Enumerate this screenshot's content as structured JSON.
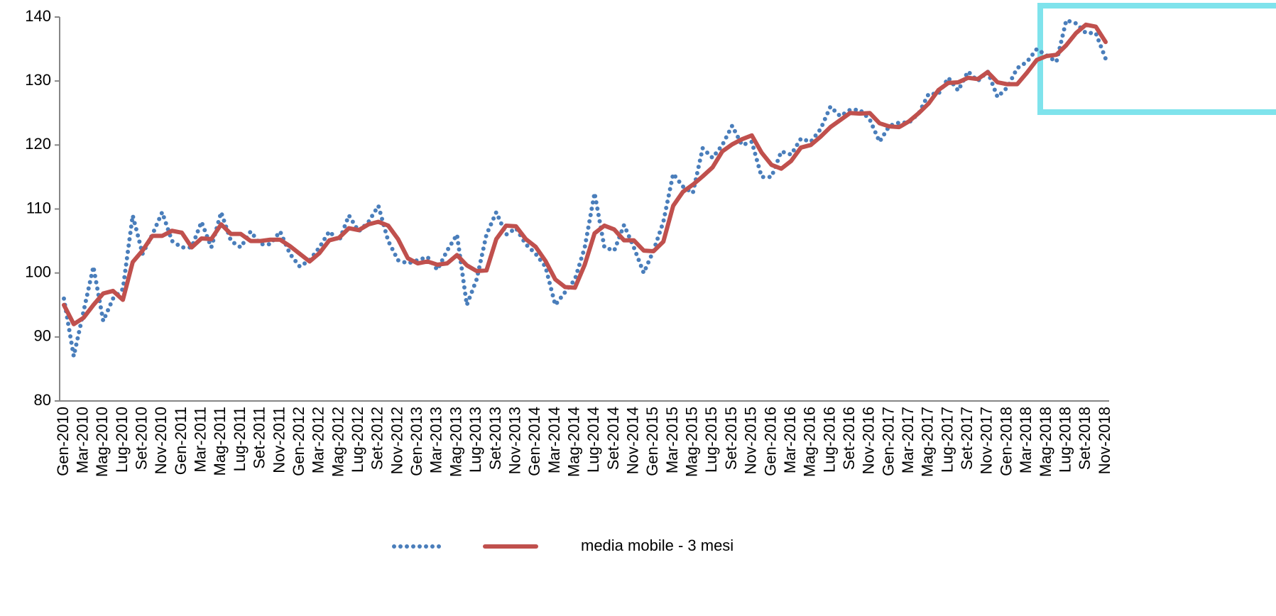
{
  "chart_data": {
    "type": "line",
    "categories": [
      "Gen-2010",
      null,
      "Mar-2010",
      null,
      "Mag-2010",
      null,
      "Lug-2010",
      null,
      "Set-2010",
      null,
      "Nov-2010",
      null,
      "Gen-2011",
      null,
      "Mar-2011",
      null,
      "Mag-2011",
      null,
      "Lug-2011",
      null,
      "Set-2011",
      null,
      "Nov-2011",
      null,
      "Gen-2012",
      null,
      "Mar-2012",
      null,
      "Mag-2012",
      null,
      "Lug-2012",
      null,
      "Set-2012",
      null,
      "Nov-2012",
      null,
      "Gen-2013",
      null,
      "Mar-2013",
      null,
      "Mag-2013",
      null,
      "Lug-2013",
      null,
      "Set-2013",
      null,
      "Nov-2013",
      null,
      "Gen-2014",
      null,
      "Mar-2014",
      null,
      "Mag-2014",
      null,
      "Lug-2014",
      null,
      "Set-2014",
      null,
      "Nov-2014",
      null,
      "Gen-2015",
      null,
      "Mar-2015",
      null,
      "Mag-2015",
      null,
      "Lug-2015",
      null,
      "Set-2015",
      null,
      "Nov-2015",
      null,
      "Gen-2016",
      null,
      "Mar-2016",
      null,
      "Mag-2016",
      null,
      "Lug-2016",
      null,
      "Set-2016",
      null,
      "Nov-2016",
      null,
      "Gen-2017",
      null,
      "Mar-2017",
      null,
      "Mag-2017",
      null,
      "Lug-2017",
      null,
      "Set-2017",
      null,
      "Nov-2017",
      null,
      "Gen-2018",
      null,
      "Mar-2018",
      null,
      "Mag-2018",
      null,
      "Lug-2018",
      null,
      "Set-2018",
      null,
      "Nov-2018"
    ],
    "series": [
      {
        "color": "#4a7ebb",
        "style": "dotted",
        "values": [
          96,
          87,
          94,
          101,
          92.5,
          96,
          97.5,
          109,
          103,
          106,
          109.5,
          105,
          104,
          104,
          108,
          104,
          109.5,
          105,
          104,
          106.5,
          104.5,
          104.5,
          106.5,
          103,
          101,
          102,
          104,
          106.5,
          105,
          109,
          106.5,
          108,
          110.5,
          105,
          102,
          101.5,
          102,
          102.5,
          100.5,
          103.5,
          106,
          95,
          99,
          106,
          109.5,
          106,
          107,
          104.5,
          103,
          101,
          95,
          97,
          99,
          104,
          112.5,
          104,
          103.5,
          107.5,
          104,
          100,
          103.5,
          108,
          115.5,
          113.5,
          112.5,
          119.5,
          118,
          120,
          123,
          120,
          120.5,
          115,
          115,
          119,
          118.5,
          121,
          120.5,
          122.5,
          126,
          124.5,
          125.5,
          125.5,
          124,
          120.5,
          123,
          123.5,
          123.5,
          125,
          128,
          128,
          130.5,
          128.5,
          131.5,
          130,
          131.5,
          127.5,
          129,
          132,
          133,
          135,
          134,
          133,
          139.5,
          139,
          137.5,
          137.5,
          133.5
        ]
      },
      {
        "name": "media mobile - 3 mesi",
        "color": "#c0504d",
        "style": "solid",
        "values": [
          95,
          92,
          93,
          95,
          96.8,
          97.2,
          95.8,
          101.7,
          103.5,
          105.8,
          105.8,
          106.6,
          106.3,
          104,
          105.4,
          105.3,
          107.6,
          106.1,
          106.1,
          105,
          105,
          105.2,
          105.2,
          104.2,
          103,
          101.8,
          103.1,
          105.1,
          105.5,
          107,
          106.7,
          107.6,
          108,
          107.4,
          105.3,
          102.3,
          101.5,
          101.8,
          101.3,
          101.5,
          102.8,
          101.2,
          100.3,
          100.4,
          105.3,
          107.4,
          107.3,
          105.3,
          104.1,
          101.9,
          99,
          97.8,
          97.7,
          101.3,
          106.2,
          107.4,
          106.8,
          105.1,
          105.1,
          103.5,
          103.4,
          104.9,
          110.5,
          112.7,
          113.8,
          115.1,
          116.5,
          119,
          120.1,
          120.9,
          121.5,
          118.8,
          116.9,
          116.3,
          117.5,
          119.6,
          120,
          121.3,
          122.8,
          123.9,
          125,
          124.9,
          125,
          123.4,
          122.9,
          122.8,
          123.7,
          125,
          126.5,
          128.6,
          129.7,
          129.8,
          130.5,
          130.3,
          131.4,
          129.8,
          129.5,
          129.5,
          131.3,
          133.3,
          133.9,
          134.1,
          135.6,
          137.5,
          138.8,
          138.5,
          136.1
        ]
      }
    ],
    "ylim": [
      80,
      140
    ],
    "yticks": [
      80,
      90,
      100,
      110,
      120,
      130,
      140
    ],
    "grid": false,
    "legend": "bottom"
  }
}
